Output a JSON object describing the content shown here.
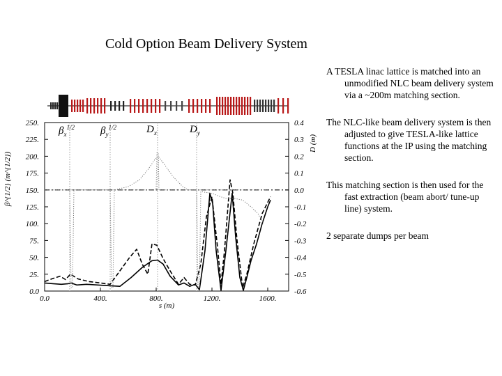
{
  "slide": {
    "title": "Cold Option Beam Delivery System",
    "bullets": [
      "A TESLA linac lattice is matched into an unmodified NLC beam delivery system via a ~200m matching section.",
      "The NLC-like beam delivery system is then adjusted to give TESLA-like lattice functions at the IP using the matching section.",
      "This matching section is then used for the fast extraction (beam abort/ tune-up line) system.",
      "2 separate dumps per beam"
    ]
  },
  "colors": {
    "line": "#000000",
    "lattice_red": "#b81818",
    "marker_gray": "#9a9a9a"
  },
  "chart_data": {
    "type": "line",
    "xlabel": "s (m)",
    "ylabel_left": "β^{1/2} (m^{1/2})",
    "ylabel_right": "D (m)",
    "xlim": [
      0,
      1750
    ],
    "ylim_left": [
      0,
      250
    ],
    "ylim_right": [
      -0.6,
      0.4
    ],
    "x_ticks": [
      "0.0",
      "400.",
      "800.",
      "1200.",
      "1600."
    ],
    "x_tick_values": [
      0,
      400,
      800,
      1200,
      1600
    ],
    "y_left_ticks": [
      "0.0",
      "25.",
      "50.",
      "75.",
      "100.",
      "125.",
      "150.",
      "175.",
      "200.",
      "225.",
      "250."
    ],
    "y_left_tick_values": [
      0,
      25,
      50,
      75,
      100,
      125,
      150,
      175,
      200,
      225,
      250
    ],
    "y_right_ticks": [
      "0.4",
      "0.3",
      "0.2",
      "0.1",
      "0.0",
      "-0.1",
      "-0.2",
      "-0.3",
      "-0.4",
      "-0.5",
      "-0.6"
    ],
    "y_right_tick_values": [
      0.4,
      0.3,
      0.2,
      0.1,
      0.0,
      -0.1,
      -0.2,
      -0.3,
      -0.4,
      -0.5,
      -0.6
    ],
    "legend_labels": [
      {
        "base": "β",
        "sub": "x",
        "sup": "1/2"
      },
      {
        "base": "β",
        "sub": "y",
        "sup": "1/2"
      },
      {
        "base": "D",
        "sub": "x",
        "sup": ""
      },
      {
        "base": "D",
        "sub": "y",
        "sup": ""
      }
    ],
    "marker_lines_s": [
      180,
      470,
      810,
      1090
    ],
    "series": [
      {
        "name": "βx^{1/2}",
        "style": "solid",
        "axis": "left",
        "points": [
          [
            0,
            12
          ],
          [
            60,
            11
          ],
          [
            120,
            10
          ],
          [
            170,
            11
          ],
          [
            190,
            12
          ],
          [
            230,
            9
          ],
          [
            300,
            10
          ],
          [
            380,
            9
          ],
          [
            460,
            8
          ],
          [
            540,
            7
          ],
          [
            620,
            20
          ],
          [
            700,
            35
          ],
          [
            770,
            45
          ],
          [
            810,
            46
          ],
          [
            850,
            40
          ],
          [
            900,
            22
          ],
          [
            960,
            9
          ],
          [
            1000,
            12
          ],
          [
            1040,
            7
          ],
          [
            1080,
            10
          ],
          [
            1110,
            2
          ],
          [
            1150,
            60
          ],
          [
            1185,
            145
          ],
          [
            1205,
            130
          ],
          [
            1230,
            60
          ],
          [
            1265,
            1
          ],
          [
            1300,
            60
          ],
          [
            1345,
            145
          ],
          [
            1370,
            80
          ],
          [
            1400,
            20
          ],
          [
            1425,
            1
          ],
          [
            1450,
            20
          ],
          [
            1480,
            45
          ],
          [
            1520,
            70
          ],
          [
            1560,
            100
          ],
          [
            1600,
            125
          ],
          [
            1620,
            135
          ]
        ]
      },
      {
        "name": "βy^{1/2}",
        "style": "dashed",
        "axis": "left",
        "points": [
          [
            0,
            14
          ],
          [
            50,
            18
          ],
          [
            110,
            22
          ],
          [
            150,
            17
          ],
          [
            185,
            25
          ],
          [
            240,
            18
          ],
          [
            320,
            14
          ],
          [
            400,
            12
          ],
          [
            470,
            10
          ],
          [
            540,
            30
          ],
          [
            610,
            50
          ],
          [
            660,
            62
          ],
          [
            700,
            40
          ],
          [
            740,
            25
          ],
          [
            770,
            70
          ],
          [
            805,
            68
          ],
          [
            850,
            48
          ],
          [
            900,
            30
          ],
          [
            960,
            10
          ],
          [
            1000,
            20
          ],
          [
            1040,
            10
          ],
          [
            1080,
            9
          ],
          [
            1120,
            40
          ],
          [
            1160,
            110
          ],
          [
            1200,
            140
          ],
          [
            1240,
            65
          ],
          [
            1265,
            10
          ],
          [
            1290,
            60
          ],
          [
            1330,
            165
          ],
          [
            1350,
            145
          ],
          [
            1380,
            75
          ],
          [
            1420,
            5
          ],
          [
            1450,
            25
          ],
          [
            1500,
            70
          ],
          [
            1560,
            115
          ],
          [
            1620,
            140
          ]
        ]
      },
      {
        "name": "Dx",
        "style": "dotted",
        "axis": "right",
        "points": [
          [
            0,
            0
          ],
          [
            180,
            0
          ],
          [
            190,
            -0.58
          ],
          [
            200,
            -0.58
          ],
          [
            210,
            0
          ],
          [
            300,
            0
          ],
          [
            800,
            0
          ],
          [
            805,
            0.22
          ],
          [
            815,
            0.22
          ],
          [
            820,
            0
          ],
          [
            1600,
            0
          ]
        ]
      },
      {
        "name": "Dy",
        "style": "dotted",
        "axis": "right",
        "points": [
          [
            0,
            0
          ],
          [
            470,
            0
          ],
          [
            480,
            -0.58
          ],
          [
            490,
            -0.58
          ],
          [
            500,
            0
          ],
          [
            600,
            0.02
          ],
          [
            680,
            0.06
          ],
          [
            740,
            0.12
          ],
          [
            790,
            0.18
          ],
          [
            815,
            0.2
          ],
          [
            860,
            0.15
          ],
          [
            920,
            0.08
          ],
          [
            990,
            0.02
          ],
          [
            1030,
            0
          ],
          [
            1090,
            0
          ],
          [
            1100,
            -0.58
          ],
          [
            1110,
            -0.58
          ],
          [
            1120,
            -0.01
          ],
          [
            1200,
            -0.02
          ],
          [
            1260,
            -0.04
          ],
          [
            1300,
            -0.05
          ],
          [
            1360,
            -0.05
          ],
          [
            1420,
            -0.06
          ],
          [
            1480,
            -0.1
          ],
          [
            1530,
            -0.14
          ],
          [
            1570,
            -0.2
          ]
        ]
      }
    ],
    "zero_dispersion_line": 0.0
  }
}
